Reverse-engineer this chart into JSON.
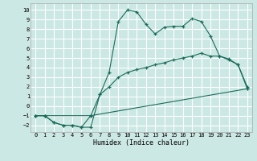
{
  "xlabel": "Humidex (Indice chaleur)",
  "bg_color": "#cce8e4",
  "line_color": "#1a6b5a",
  "grid_color": "#ffffff",
  "xlim": [
    -0.5,
    23.5
  ],
  "ylim": [
    -2.7,
    10.7
  ],
  "xticks": [
    0,
    1,
    2,
    3,
    4,
    5,
    6,
    7,
    8,
    9,
    10,
    11,
    12,
    13,
    14,
    15,
    16,
    17,
    18,
    19,
    20,
    21,
    22,
    23
  ],
  "yticks": [
    -2,
    -1,
    0,
    1,
    2,
    3,
    4,
    5,
    6,
    7,
    8,
    9,
    10
  ],
  "line1_x": [
    0,
    1,
    2,
    3,
    4,
    5,
    6,
    7,
    8,
    9,
    10,
    11,
    12,
    13,
    14,
    15,
    16,
    17,
    18,
    19,
    20,
    21,
    22,
    23
  ],
  "line1_y": [
    -1,
    -1,
    -1.7,
    -2,
    -2,
    -2.2,
    -2.2,
    1.2,
    3.5,
    8.8,
    10.0,
    9.8,
    8.5,
    7.5,
    8.2,
    8.3,
    8.3,
    9.1,
    8.8,
    7.3,
    5.2,
    4.9,
    4.3,
    2.0
  ],
  "line2_x": [
    0,
    1,
    2,
    3,
    4,
    5,
    6,
    7,
    8,
    9,
    10,
    11,
    12,
    13,
    14,
    15,
    16,
    17,
    18,
    19,
    20,
    21,
    22,
    23
  ],
  "line2_y": [
    -1,
    -1,
    -1.7,
    -2,
    -2,
    -2.2,
    -1.0,
    1.2,
    2.0,
    3.0,
    3.5,
    3.8,
    4.0,
    4.3,
    4.5,
    4.8,
    5.0,
    5.2,
    5.5,
    5.2,
    5.2,
    4.8,
    4.3,
    1.8
  ],
  "line3_x": [
    0,
    1,
    6,
    23
  ],
  "line3_y": [
    -1,
    -1,
    -1.0,
    1.8
  ]
}
